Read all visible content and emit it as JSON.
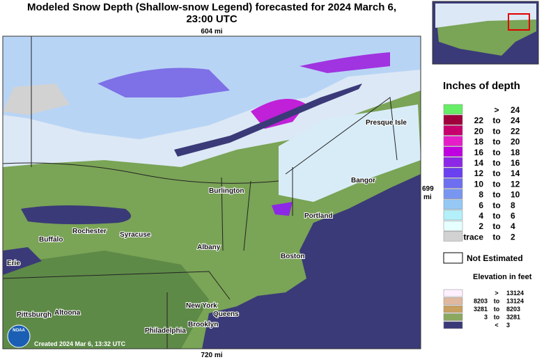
{
  "header": {
    "title_line1": "Modeled Snow Depth (Shallow-snow Legend) forecasted for 2024 March 6,",
    "title_line2": "23:00 UTC"
  },
  "map": {
    "scale_top": "604 mi",
    "scale_bottom": "720 mi",
    "scale_right_value": "699",
    "scale_right_unit": "mi",
    "credit": "Created 2024 Mar 6, 13:32 UTC",
    "logo": "NOAA",
    "cities": [
      "Presque Isle",
      "Burlington",
      "Bangor",
      "Portland",
      "Rochester",
      "Syracuse",
      "Buffalo",
      "Albany",
      "Boston",
      "Erie",
      "New York",
      "Queens",
      "Pittsburgh",
      "Altoona",
      "Brooklyn",
      "Philadelphia"
    ]
  },
  "legend": {
    "title": "Inches of depth",
    "rows": [
      {
        "from": "",
        "to": ">",
        "upto": "24",
        "color": "#66ee66"
      },
      {
        "from": "22",
        "to": "to",
        "upto": "24",
        "color": "#a0003c"
      },
      {
        "from": "20",
        "to": "to",
        "upto": "22",
        "color": "#c8006e"
      },
      {
        "from": "18",
        "to": "to",
        "upto": "20",
        "color": "#e61ec8"
      },
      {
        "from": "16",
        "to": "to",
        "upto": "18",
        "color": "#c000e0"
      },
      {
        "from": "14",
        "to": "to",
        "upto": "16",
        "color": "#8c28e6"
      },
      {
        "from": "12",
        "to": "to",
        "upto": "14",
        "color": "#6a40f0"
      },
      {
        "from": "10",
        "to": "to",
        "upto": "12",
        "color": "#6e6ef0"
      },
      {
        "from": "8",
        "to": "to",
        "upto": "10",
        "color": "#7896f0"
      },
      {
        "from": "6",
        "to": "to",
        "upto": "8",
        "color": "#96c8f5"
      },
      {
        "from": "4",
        "to": "to",
        "upto": "6",
        "color": "#b4f0fa"
      },
      {
        "from": "2",
        "to": "to",
        "upto": "4",
        "color": "#e6ffff"
      },
      {
        "from": "trace",
        "to": "to",
        "upto": "2",
        "color": "#d2d2d2"
      }
    ],
    "not_estimated": "Not Estimated",
    "elevation_title": "Elevation in feet",
    "elevation_rows": [
      {
        "from": "",
        "to": ">",
        "upto": "13124",
        "color": "#fff0ff"
      },
      {
        "from": "8203",
        "to": "to",
        "upto": "13124",
        "color": "#e0b8a0"
      },
      {
        "from": "3281",
        "to": "to",
        "upto": "8203",
        "color": "#c8a060"
      },
      {
        "from": "3",
        "to": "to",
        "upto": "3281",
        "color": "#8aa860"
      },
      {
        "from": "",
        "to": "<",
        "upto": "3",
        "color": "#3a3a78"
      }
    ]
  }
}
